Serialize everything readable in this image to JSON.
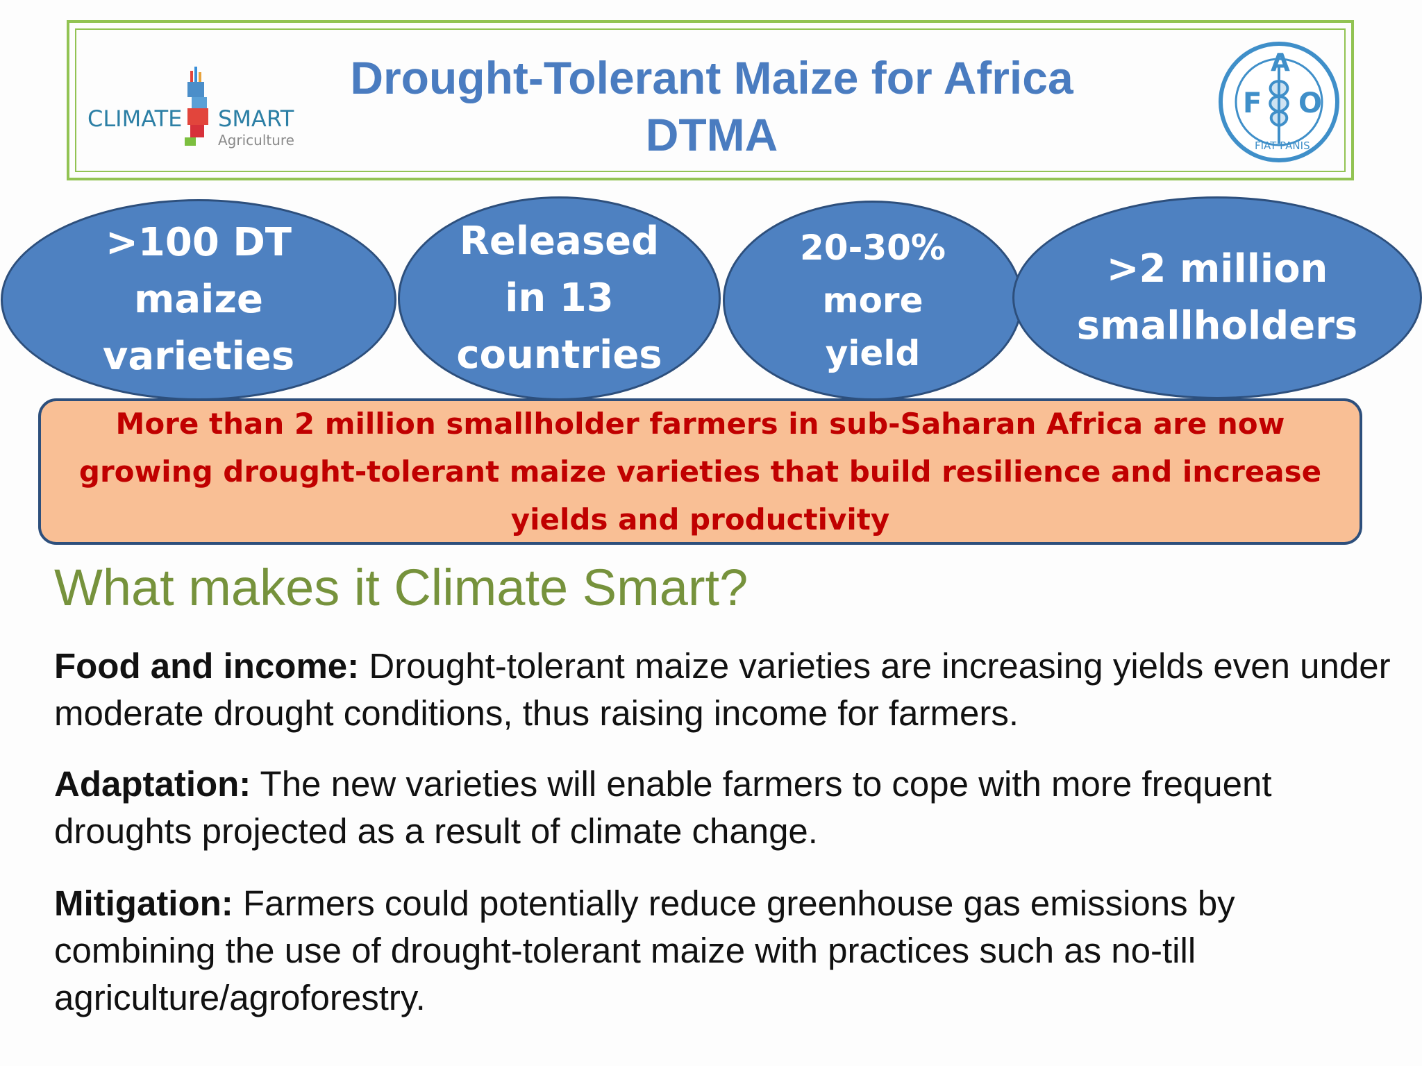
{
  "header": {
    "title_line1": "Drought-Tolerant Maize for Africa",
    "title_line2": "DTMA",
    "logo_left": {
      "word1": "CLIMATE",
      "word2": "SMART",
      "word3": "Agriculture"
    },
    "logo_right": {
      "letters": [
        "F",
        "A",
        "O"
      ],
      "motto": "FIAT PANIS"
    }
  },
  "stats": [
    {
      "lines": [
        ">100 DT",
        "maize",
        "varieties"
      ]
    },
    {
      "lines": [
        "Released",
        "in 13",
        "countries"
      ]
    },
    {
      "lines": [
        "20-30%",
        "more",
        "yield"
      ]
    },
    {
      "lines": [
        ">2 million",
        "smallholders"
      ]
    }
  ],
  "banner": {
    "text": "More than 2 million smallholder farmers in sub-Saharan Africa are now growing drought-tolerant maize varieties that build resilience and increase yields and productivity"
  },
  "section": {
    "heading": "What makes it Climate Smart?"
  },
  "points": [
    {
      "label": "Food and income:",
      "text": " Drought-tolerant maize varieties are increasing yields even under moderate drought conditions, thus raising income for farmers."
    },
    {
      "label": "Adaptation:",
      "text": " The new varieties will enable farmers to cope with more frequent droughts projected as a result of climate change."
    },
    {
      "label": "Mitigation:",
      "text": " Farmers could potentially reduce greenhouse gas emissions by combining the use of drought-tolerant maize with practices such as no-till agriculture/agroforestry."
    }
  ],
  "colors": {
    "title": "#4a7cc0",
    "frame": "#92c353",
    "oval_fill": "#4e81c1",
    "banner_fill": "#f9bf95",
    "banner_text": "#c00000",
    "heading": "#76923c"
  }
}
